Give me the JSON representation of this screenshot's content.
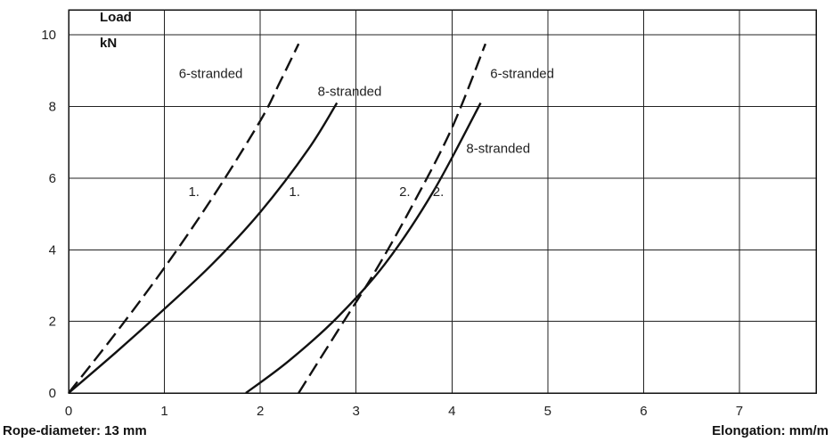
{
  "chart_data": {
    "type": "line",
    "ylabel_line1": "Load",
    "ylabel_line2": "kN",
    "footer_left": "Rope-diameter: 13 mm",
    "footer_right": "Elongation: mm/m",
    "xlim": [
      0,
      7.8
    ],
    "ylim": [
      0,
      10.7
    ],
    "grid": true,
    "xticks": [
      {
        "v": 0,
        "label": "0"
      },
      {
        "v": 1,
        "label": "1"
      },
      {
        "v": 2,
        "label": "2"
      },
      {
        "v": 3,
        "label": "3"
      },
      {
        "v": 4,
        "label": "4"
      },
      {
        "v": 5,
        "label": "5"
      },
      {
        "v": 6,
        "label": "6"
      },
      {
        "v": 7,
        "label": "7"
      }
    ],
    "yticks": [
      {
        "v": 0,
        "label": "0"
      },
      {
        "v": 2,
        "label": "2"
      },
      {
        "v": 4,
        "label": "4"
      },
      {
        "v": 6,
        "label": "6"
      },
      {
        "v": 8,
        "label": "8"
      },
      {
        "v": 10,
        "label": "10"
      }
    ],
    "series": [
      {
        "id": "s1-6",
        "dashed": true,
        "x": [
          0,
          0.5,
          1.0,
          1.5,
          2.0,
          2.2,
          2.4
        ],
        "y": [
          0,
          1.7,
          3.5,
          5.45,
          7.6,
          8.65,
          9.75
        ]
      },
      {
        "id": "s1-8",
        "dashed": false,
        "x": [
          0,
          0.5,
          1.0,
          1.5,
          2.0,
          2.5,
          2.8
        ],
        "y": [
          0,
          1.15,
          2.35,
          3.6,
          5.05,
          6.8,
          8.1
        ]
      },
      {
        "id": "s2-6",
        "dashed": true,
        "x": [
          2.4,
          2.8,
          3.2,
          3.6,
          4.0,
          4.35
        ],
        "y": [
          0,
          1.7,
          3.4,
          5.3,
          7.4,
          9.75
        ]
      },
      {
        "id": "s2-8",
        "dashed": false,
        "x": [
          1.85,
          2.3,
          2.8,
          3.3,
          3.8,
          4.3
        ],
        "y": [
          0,
          0.9,
          2.1,
          3.6,
          5.6,
          8.1
        ]
      }
    ],
    "annotations": [
      {
        "text": "6-stranded",
        "x": 1.15,
        "y": 8.8
      },
      {
        "text": "8-stranded",
        "x": 2.6,
        "y": 8.3
      },
      {
        "text": "6-stranded",
        "x": 4.4,
        "y": 8.8
      },
      {
        "text": "8-stranded",
        "x": 4.15,
        "y": 6.7
      },
      {
        "text": "1.",
        "x": 1.25,
        "y": 5.5
      },
      {
        "text": "1.",
        "x": 2.3,
        "y": 5.5
      },
      {
        "text": "2.",
        "x": 3.45,
        "y": 5.5
      },
      {
        "text": "2.",
        "x": 3.8,
        "y": 5.5
      }
    ]
  }
}
